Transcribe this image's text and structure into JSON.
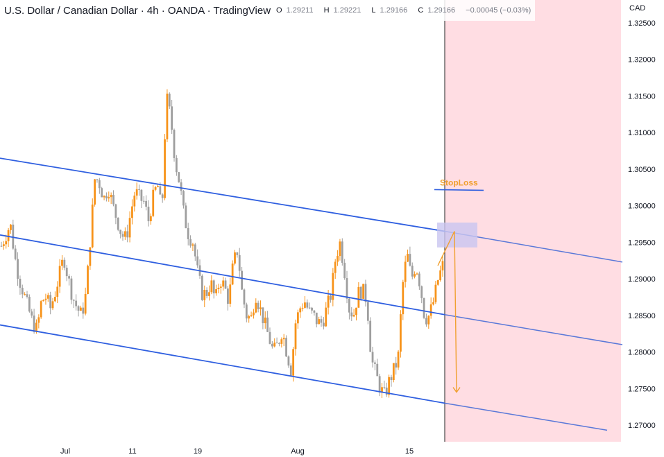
{
  "header": {
    "title": "U.S. Dollar / Canadian Dollar · 4h · OANDA · TradingView",
    "open_label": "O",
    "open": "1.29211",
    "high_label": "H",
    "high": "1.29221",
    "low_label": "L",
    "low": "1.29166",
    "close_label": "C",
    "close": "1.29166",
    "change": "−0.00045 (−0.03%)"
  },
  "colors": {
    "up_candle": "#f7931a",
    "down_candle": "#9e9e9e",
    "channel_line": "#2f5fe0",
    "future_zone": "#ffdde3",
    "target_box": "#c9c6f0",
    "annotation": "#f0a030",
    "stoploss_line": "#2f5fe0"
  },
  "annotations": {
    "stoploss_label": "StopLoss",
    "stoploss_price": 1.3022
  },
  "chart_data": {
    "type": "candlestick",
    "symbol": "USDCAD",
    "timeframe": "4h",
    "currency_label": "CAD",
    "y_ticks": [
      1.325,
      1.32,
      1.315,
      1.31,
      1.305,
      1.3,
      1.295,
      1.29,
      1.285,
      1.28,
      1.275,
      1.27
    ],
    "y_tick_labels": [
      "1.32500",
      "1.32000",
      "1.31500",
      "1.31000",
      "1.30500",
      "1.30000",
      "1.29500",
      "1.29000",
      "1.28500",
      "1.28000",
      "1.27500",
      "1.27000"
    ],
    "ylim": [
      1.2684,
      1.3282
    ],
    "x_labels": [
      "Jul",
      "11",
      "19",
      "Aug",
      "15"
    ],
    "close_path": [
      1.2945,
      1.296,
      1.2975,
      1.293,
      1.29,
      1.288,
      1.286,
      1.284,
      1.283,
      1.287,
      1.2875,
      1.286,
      1.288,
      1.2905,
      1.293,
      1.29,
      1.2875,
      1.286,
      1.285,
      1.288,
      1.296,
      1.304,
      1.303,
      1.301,
      1.3025,
      1.3,
      1.298,
      1.296,
      1.2955,
      1.299,
      1.302,
      1.301,
      1.3005,
      1.298,
      1.301,
      1.303,
      1.299,
      1.315,
      1.312,
      1.306,
      1.303,
      1.2985,
      1.296,
      1.295,
      1.291,
      1.288,
      1.288,
      1.2895,
      1.287,
      1.29,
      1.289,
      1.287,
      1.292,
      1.294,
      1.288,
      1.285,
      1.2845,
      1.288,
      1.286,
      1.284,
      1.282,
      1.28,
      1.281,
      1.283,
      1.28,
      1.2775,
      1.284,
      1.286,
      1.287,
      1.2855,
      1.285,
      1.284,
      1.284,
      1.286,
      1.288,
      1.293,
      1.295,
      1.291,
      1.286,
      1.285,
      1.288,
      1.2885,
      1.287,
      1.279,
      1.277,
      1.275,
      1.274,
      1.276,
      1.2775,
      1.279,
      1.289,
      1.2935,
      1.29,
      1.292,
      1.289,
      1.2845,
      1.285,
      1.287,
      1.29,
      1.2918
    ],
    "channel_lines": [
      {
        "name": "",
        "points": [
          [
            0,
            1.3065
          ],
          [
            641,
            1.2965
          ],
          [
            897,
            1.2923
          ]
        ]
      },
      {
        "name": "",
        "points": [
          [
            0,
            1.296
          ],
          [
            641,
            1.2851
          ],
          [
            897,
            1.281
          ]
        ]
      },
      {
        "name": "",
        "points": [
          [
            0,
            1.2837
          ],
          [
            641,
            1.273
          ],
          [
            875,
            1.2693
          ]
        ]
      }
    ],
    "projection": {
      "from": 1.2965,
      "to": 1.2745
    },
    "target_zone": {
      "high": 1.2977,
      "low": 1.2943
    },
    "grid": false,
    "legend": "none"
  }
}
